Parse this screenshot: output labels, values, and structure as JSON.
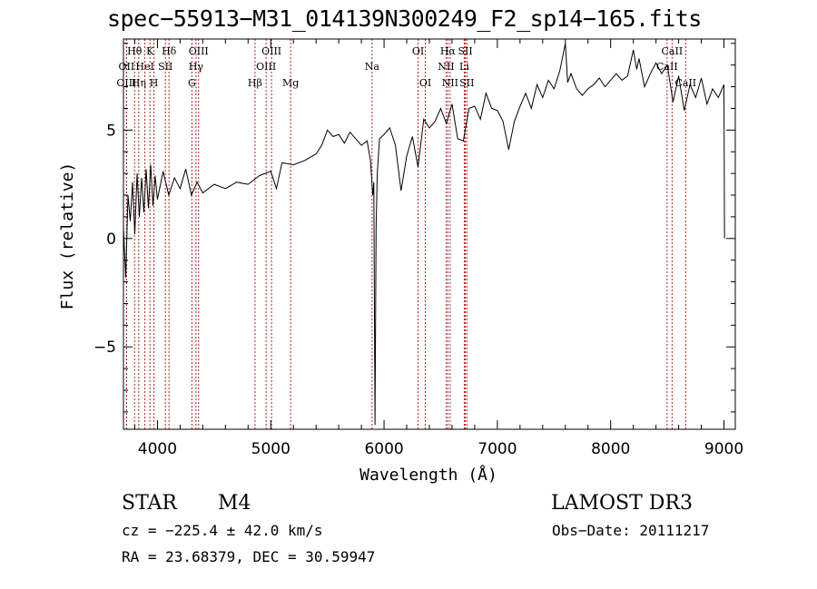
{
  "chart_data": {
    "type": "line",
    "title": "spec−55913−M31_014139N300249_F2_sp14−165.fits",
    "xlabel": "Wavelength (Å)",
    "ylabel": "Flux (relative)",
    "xlim": [
      3700,
      9100
    ],
    "ylim": [
      -8.8,
      9.2
    ],
    "xticks": [
      {
        "value": 4000,
        "label": "4000"
      },
      {
        "value": 5000,
        "label": "5000"
      },
      {
        "value": 6000,
        "label": "6000"
      },
      {
        "value": 7000,
        "label": "7000"
      },
      {
        "value": 8000,
        "label": "8000"
      },
      {
        "value": 9000,
        "label": "9000"
      }
    ],
    "yticks": [
      {
        "value": -5,
        "label": "−5"
      },
      {
        "value": 0,
        "label": "0"
      },
      {
        "value": 5,
        "label": "5"
      }
    ],
    "series": [
      {
        "name": "flux",
        "color": "#000000",
        "points": [
          [
            3700,
            0.5
          ],
          [
            3720,
            -1.8
          ],
          [
            3740,
            2.0
          ],
          [
            3760,
            0.8
          ],
          [
            3780,
            2.6
          ],
          [
            3800,
            0.2
          ],
          [
            3820,
            3.0
          ],
          [
            3840,
            1.0
          ],
          [
            3860,
            2.8
          ],
          [
            3880,
            1.2
          ],
          [
            3900,
            3.2
          ],
          [
            3920,
            1.4
          ],
          [
            3940,
            3.4
          ],
          [
            3960,
            1.5
          ],
          [
            3980,
            2.9
          ],
          [
            4000,
            1.8
          ],
          [
            4050,
            3.1
          ],
          [
            4100,
            2.0
          ],
          [
            4150,
            2.8
          ],
          [
            4200,
            2.3
          ],
          [
            4250,
            3.2
          ],
          [
            4300,
            2.0
          ],
          [
            4350,
            2.6
          ],
          [
            4400,
            2.1
          ],
          [
            4500,
            2.5
          ],
          [
            4600,
            2.3
          ],
          [
            4700,
            2.6
          ],
          [
            4800,
            2.5
          ],
          [
            4900,
            2.9
          ],
          [
            5000,
            3.1
          ],
          [
            5050,
            2.3
          ],
          [
            5100,
            3.5
          ],
          [
            5200,
            3.4
          ],
          [
            5300,
            3.6
          ],
          [
            5400,
            3.9
          ],
          [
            5450,
            4.3
          ],
          [
            5500,
            5.0
          ],
          [
            5550,
            4.7
          ],
          [
            5600,
            4.8
          ],
          [
            5650,
            4.4
          ],
          [
            5700,
            4.9
          ],
          [
            5750,
            4.6
          ],
          [
            5800,
            4.3
          ],
          [
            5850,
            4.5
          ],
          [
            5880,
            3.6
          ],
          [
            5900,
            2.0
          ],
          [
            5910,
            2.6
          ],
          [
            5920,
            -8.6
          ],
          [
            5930,
            0.5
          ],
          [
            5940,
            3.0
          ],
          [
            5960,
            4.6
          ],
          [
            6000,
            4.8
          ],
          [
            6050,
            5.1
          ],
          [
            6100,
            4.3
          ],
          [
            6150,
            2.2
          ],
          [
            6200,
            3.8
          ],
          [
            6250,
            4.7
          ],
          [
            6300,
            3.3
          ],
          [
            6350,
            5.5
          ],
          [
            6400,
            5.1
          ],
          [
            6450,
            5.4
          ],
          [
            6500,
            6.0
          ],
          [
            6550,
            5.3
          ],
          [
            6600,
            6.2
          ],
          [
            6650,
            4.6
          ],
          [
            6700,
            4.5
          ],
          [
            6750,
            6.0
          ],
          [
            6800,
            6.1
          ],
          [
            6850,
            5.5
          ],
          [
            6900,
            6.7
          ],
          [
            6950,
            6.0
          ],
          [
            7000,
            5.9
          ],
          [
            7050,
            5.4
          ],
          [
            7100,
            4.1
          ],
          [
            7150,
            5.4
          ],
          [
            7200,
            6.1
          ],
          [
            7250,
            6.7
          ],
          [
            7300,
            6.0
          ],
          [
            7350,
            7.1
          ],
          [
            7400,
            6.5
          ],
          [
            7450,
            7.3
          ],
          [
            7500,
            6.9
          ],
          [
            7550,
            7.7
          ],
          [
            7600,
            9.0
          ],
          [
            7620,
            7.2
          ],
          [
            7650,
            7.6
          ],
          [
            7700,
            6.9
          ],
          [
            7750,
            6.6
          ],
          [
            7800,
            6.9
          ],
          [
            7850,
            7.1
          ],
          [
            7900,
            7.4
          ],
          [
            7950,
            7.0
          ],
          [
            8000,
            7.3
          ],
          [
            8050,
            7.6
          ],
          [
            8100,
            7.3
          ],
          [
            8150,
            7.5
          ],
          [
            8200,
            8.7
          ],
          [
            8230,
            7.8
          ],
          [
            8250,
            8.3
          ],
          [
            8300,
            7.0
          ],
          [
            8350,
            7.6
          ],
          [
            8400,
            8.1
          ],
          [
            8450,
            7.6
          ],
          [
            8500,
            8.0
          ],
          [
            8550,
            6.3
          ],
          [
            8600,
            7.5
          ],
          [
            8650,
            5.9
          ],
          [
            8700,
            7.1
          ],
          [
            8750,
            6.5
          ],
          [
            8800,
            7.4
          ],
          [
            8850,
            6.2
          ],
          [
            8900,
            6.9
          ],
          [
            8950,
            6.5
          ],
          [
            9000,
            7.1
          ],
          [
            9005,
            0.0
          ]
        ]
      }
    ],
    "lines": [
      {
        "name": "Hθ",
        "wavelength": 3798,
        "row": 1
      },
      {
        "name": "OII",
        "wavelength": 3727,
        "row": 2
      },
      {
        "name": "OIII",
        "wavelength": 3727,
        "row": 3
      },
      {
        "name": "K",
        "wavelength": 3934,
        "row": 1
      },
      {
        "name": "HeI",
        "wavelength": 3889,
        "row": 2
      },
      {
        "name": "Hη",
        "wavelength": 3835,
        "row": 3
      },
      {
        "name": "H",
        "wavelength": 3969,
        "row": 3
      },
      {
        "name": "Hδ",
        "wavelength": 4102,
        "row": 1
      },
      {
        "name": "SII",
        "wavelength": 4070,
        "row": 2
      },
      {
        "name": "OIII",
        "wavelength": 4363,
        "row": 1
      },
      {
        "name": "Hγ",
        "wavelength": 4340,
        "row": 2
      },
      {
        "name": "G",
        "wavelength": 4304,
        "row": 3
      },
      {
        "name": "OIII",
        "wavelength": 5007,
        "row": 1
      },
      {
        "name": "OIII",
        "wavelength": 4959,
        "row": 2
      },
      {
        "name": "Hβ",
        "wavelength": 4861,
        "row": 3
      },
      {
        "name": "Mg",
        "wavelength": 5175,
        "row": 3
      },
      {
        "name": "Na",
        "wavelength": 5894,
        "row": 2
      },
      {
        "name": "OI",
        "wavelength": 6300,
        "row": 1
      },
      {
        "name": "OI",
        "wavelength": 6364,
        "row": 3
      },
      {
        "name": "Hα",
        "wavelength": 6563,
        "row": 1
      },
      {
        "name": "SII",
        "wavelength": 6717,
        "row": 1
      },
      {
        "name": "NII",
        "wavelength": 6548,
        "row": 2
      },
      {
        "name": "Li",
        "wavelength": 6708,
        "row": 2
      },
      {
        "name": "NII",
        "wavelength": 6583,
        "row": 3
      },
      {
        "name": "SII",
        "wavelength": 6731,
        "row": 3
      },
      {
        "name": "CaII",
        "wavelength": 8542,
        "row": 1
      },
      {
        "name": "CaII",
        "wavelength": 8498,
        "row": 2
      },
      {
        "name": "CaII",
        "wavelength": 8662,
        "row": 3
      }
    ],
    "line_color": "#b22222"
  },
  "info": {
    "object_class": "STAR",
    "subclass": "M4",
    "survey": "LAMOST DR3",
    "cz": "cz = −225.4 ± 42.0 km/s",
    "obs_date": "Obs−Date: 20111217",
    "coords": "RA =  23.68379, DEC =  30.59947"
  }
}
